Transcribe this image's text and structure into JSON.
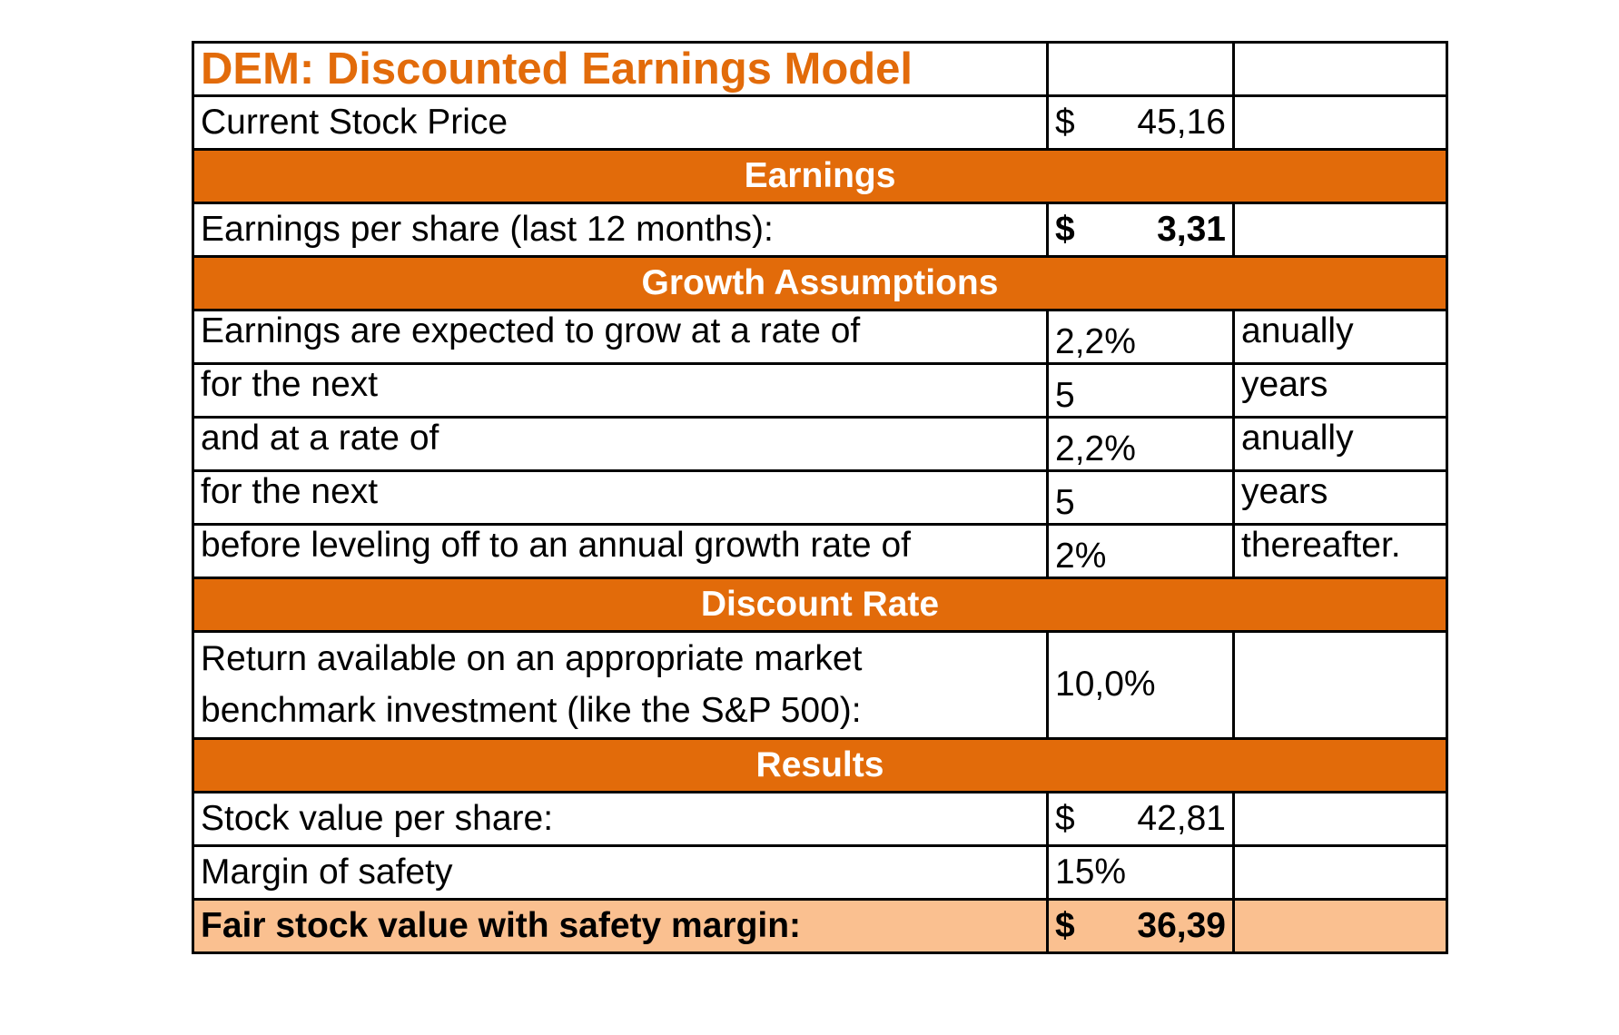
{
  "title": "DEM: Discounted Earnings Model",
  "current_stock_price": {
    "label": "Current Stock Price",
    "currency": "$",
    "value": "45,16"
  },
  "sections": {
    "earnings": "Earnings",
    "growth": "Growth Assumptions",
    "discount": "Discount Rate",
    "results": "Results"
  },
  "earnings": {
    "label": "Earnings per share (last 12 months):",
    "currency": "$",
    "value": "3,31"
  },
  "growth": [
    {
      "label": "Earnings are expected to grow at a rate of",
      "value": "2,2%",
      "unit": "anually"
    },
    {
      "label": "for the next",
      "value": "5",
      "unit": "years"
    },
    {
      "label": "and at a rate of",
      "value": "2,2%",
      "unit": "anually"
    },
    {
      "label": "for the next",
      "value": "5",
      "unit": "years"
    },
    {
      "label": "before leveling off to an annual growth rate of",
      "value": "2%",
      "unit": "thereafter."
    }
  ],
  "discount": {
    "label": "Return available on an appropriate market benchmark investment (like the S&P 500):",
    "value": "10,0%"
  },
  "results": {
    "stock_value": {
      "label": "Stock value per share:",
      "currency": "$",
      "value": "42,81"
    },
    "margin": {
      "label": "Margin of safety",
      "value": "15%"
    },
    "fair_value": {
      "label": "Fair stock value with safety margin:",
      "currency": "$",
      "value": "36,39"
    }
  },
  "colors": {
    "accent": "#e26b0a",
    "highlight": "#fac090",
    "section_text": "#ffffff"
  }
}
